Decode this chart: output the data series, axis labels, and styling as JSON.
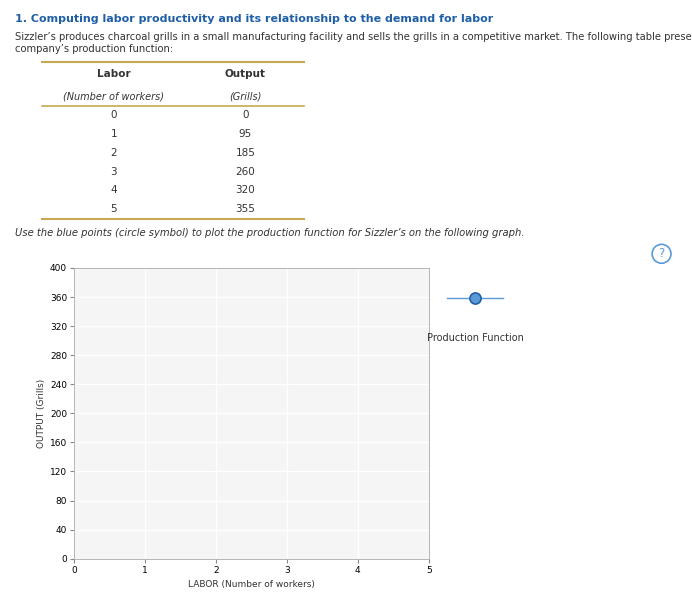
{
  "title": "1. Computing labor productivity and its relationship to the demand for labor",
  "description_line1": "Sizzler’s produces charcoal grills in a small manufacturing facility and sells the grills in a competitive market. The following table presents the",
  "description_line2": "company’s production function:",
  "table_headers": [
    "Labor",
    "Output"
  ],
  "table_subheaders": [
    "(Number of workers)",
    "(Grills)"
  ],
  "table_labor": [
    0,
    1,
    2,
    3,
    4,
    5
  ],
  "table_output": [
    0,
    95,
    185,
    260,
    320,
    355
  ],
  "instruction": "Use the blue points (circle symbol) to plot the production function for Sizzler’s on the following graph.",
  "xlabel": "LABOR (Number of workers)",
  "ylabel": "OUTPUT (Grills)",
  "xlim": [
    0,
    5
  ],
  "ylim": [
    0,
    400
  ],
  "xticks": [
    0,
    1,
    2,
    3,
    4,
    5
  ],
  "yticks": [
    0,
    40,
    80,
    120,
    160,
    200,
    240,
    280,
    320,
    360,
    400
  ],
  "legend_label": "Production Function",
  "point_color": "#1f5fa6",
  "point_face_color": "#5b9bd5",
  "line_color": "#5b9bd5",
  "background_color": "#ffffff",
  "graph_bg_color": "#f5f5f5",
  "grid_color": "#ffffff",
  "table_row_shaded_color": "#efefef",
  "table_border_color": "#c8a951",
  "outer_border_color": "#cccccc",
  "title_color": "#1f5fa6",
  "text_color": "#333333",
  "question_color": "#5b9bd5",
  "title_fontsize": 8.0,
  "body_fontsize": 7.2,
  "table_fontsize": 7.5,
  "axis_fontsize": 6.5,
  "tick_fontsize": 6.5,
  "legend_fontsize": 7.0,
  "question_fontsize": 8.5
}
